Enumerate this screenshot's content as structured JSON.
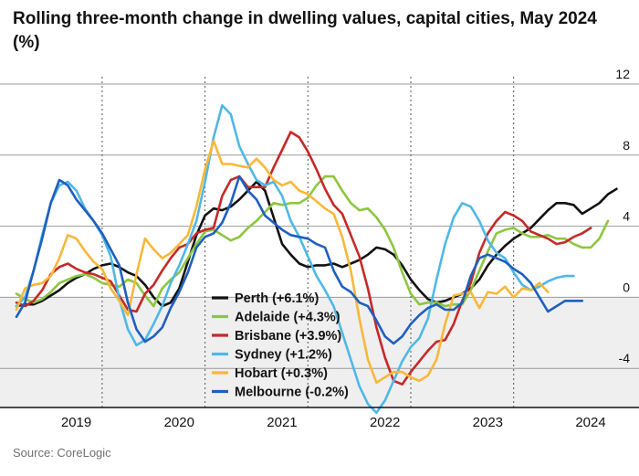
{
  "title": "Rolling three-month change in dwelling values, capital cities, May 2024 (%)",
  "source": "Source: CoreLogic",
  "chart_data": {
    "type": "line",
    "x_start": "2018-09",
    "x_end": "2024-06",
    "ylim": [
      -6.2,
      12
    ],
    "y_ticks": [
      12,
      8,
      4,
      0,
      -4
    ],
    "x_ticks": [
      {
        "label": "2019",
        "date": "2019-01"
      },
      {
        "label": "2020",
        "date": "2020-01"
      },
      {
        "label": "2021",
        "date": "2021-01"
      },
      {
        "label": "2022",
        "date": "2022-01"
      },
      {
        "label": "2023",
        "date": "2023-01"
      },
      {
        "label": "2024",
        "date": "2024-01"
      }
    ],
    "dotted_dividers": [
      "2019-07",
      "2020-07",
      "2021-07",
      "2022-07",
      "2023-07"
    ],
    "grid": true,
    "negative_shade": "#efefef",
    "legend_position": "center-left",
    "series": [
      {
        "name": "Perth (+6.1%)",
        "color": "#121212",
        "start": "2018-09",
        "values": [
          -0.5,
          -0.4,
          -0.4,
          -0.2,
          0.1,
          0.4,
          0.8,
          1.1,
          1.3,
          1.6,
          1.8,
          1.9,
          1.7,
          1.4,
          1.2,
          0.7,
          0.0,
          -0.5,
          -0.3,
          0.5,
          2.0,
          3.5,
          4.6,
          5.0,
          4.9,
          5.1,
          5.5,
          6.0,
          6.5,
          6.0,
          4.5,
          3.0,
          2.4,
          1.9,
          1.7,
          1.8,
          1.8,
          1.9,
          1.7,
          1.9,
          2.1,
          2.4,
          2.8,
          2.7,
          2.4,
          1.8,
          1.0,
          0.4,
          -0.1,
          -0.3,
          -0.2,
          0.0,
          0.2,
          0.5,
          1.0,
          1.8,
          2.4,
          2.9,
          3.3,
          3.6,
          3.9,
          4.4,
          4.9,
          5.3,
          5.3,
          5.2,
          4.7,
          5.0,
          5.3,
          5.8,
          6.1
        ]
      },
      {
        "name": "Adelaide (+4.3%)",
        "color": "#8dc63f",
        "start": "2018-09",
        "values": [
          0.2,
          -0.1,
          -0.3,
          -0.1,
          0.3,
          0.8,
          1.0,
          1.2,
          1.3,
          1.1,
          0.8,
          0.7,
          0.6,
          1.0,
          0.8,
          0.1,
          -0.5,
          0.5,
          1.0,
          1.4,
          2.2,
          3.0,
          3.7,
          3.8,
          3.5,
          3.2,
          3.4,
          3.9,
          4.3,
          4.8,
          5.3,
          5.2,
          5.3,
          5.3,
          5.6,
          6.3,
          6.8,
          6.8,
          6.0,
          5.3,
          4.9,
          5.0,
          4.5,
          3.8,
          2.8,
          1.4,
          0.2,
          -0.4,
          -0.3,
          -0.3,
          -0.5,
          -0.4,
          -0.4,
          0.4,
          1.5,
          2.6,
          3.6,
          3.8,
          3.9,
          3.6,
          3.4,
          3.4,
          3.5,
          3.3,
          3.3,
          3.0,
          2.8,
          2.8,
          3.3,
          4.3
        ]
      },
      {
        "name": "Brisbane (+3.9%)",
        "color": "#c62828",
        "start": "2018-09",
        "values": [
          -0.3,
          -0.5,
          -0.2,
          0.4,
          1.3,
          1.7,
          1.9,
          1.6,
          1.4,
          1.3,
          1.1,
          0.9,
          0.1,
          -0.7,
          -0.8,
          0.2,
          0.7,
          1.5,
          2.2,
          2.8,
          3.0,
          3.6,
          3.8,
          3.9,
          5.7,
          6.6,
          6.8,
          6.2,
          6.2,
          6.2,
          7.3,
          8.3,
          9.3,
          9.0,
          8.2,
          7.2,
          6.1,
          5.2,
          4.7,
          3.5,
          2.3,
          0.5,
          -1.7,
          -3.4,
          -4.7,
          -4.9,
          -4.2,
          -3.6,
          -3.0,
          -2.5,
          -2.4,
          -1.5,
          -0.2,
          0.8,
          2.5,
          3.6,
          4.3,
          4.8,
          4.6,
          4.3,
          3.7,
          3.5,
          3.3,
          3.0,
          3.1,
          3.4,
          3.6,
          3.9
        ]
      },
      {
        "name": "Sydney (+1.2%)",
        "color": "#4fb8e6",
        "start": "2018-09",
        "values": [
          -0.5,
          0.0,
          1.5,
          3.5,
          5.3,
          6.3,
          6.5,
          6.0,
          5.0,
          4.3,
          3.5,
          2.3,
          -0.1,
          -1.8,
          -2.7,
          -2.4,
          -1.5,
          -0.5,
          0.8,
          1.8,
          3.0,
          4.3,
          6.5,
          9.0,
          10.8,
          10.3,
          8.5,
          7.5,
          6.6,
          6.3,
          6.5,
          5.7,
          4.3,
          3.4,
          2.3,
          1.2,
          0.4,
          -0.5,
          -2.0,
          -3.5,
          -5.0,
          -6.0,
          -6.5,
          -5.8,
          -4.7,
          -3.6,
          -2.8,
          -2.3,
          -1.2,
          1.0,
          3.0,
          4.5,
          5.3,
          5.1,
          4.3,
          3.2,
          2.5,
          2.2,
          1.4,
          0.7,
          0.4,
          0.6,
          0.9,
          1.1,
          1.2,
          1.2
        ]
      },
      {
        "name": "Hobart (+0.3%)",
        "color": "#f9b73a",
        "start": "2018-09",
        "values": [
          -0.7,
          0.5,
          0.7,
          0.8,
          1.2,
          2.2,
          3.5,
          3.3,
          2.6,
          2.0,
          1.6,
          0.5,
          -0.2,
          -1.0,
          1.3,
          3.3,
          2.7,
          2.2,
          2.5,
          3.0,
          3.5,
          5.1,
          7.2,
          8.8,
          7.5,
          7.5,
          7.4,
          7.3,
          7.8,
          7.3,
          6.6,
          6.3,
          6.5,
          6.0,
          5.8,
          5.4,
          5.0,
          4.7,
          3.4,
          1.5,
          -1.2,
          -3.5,
          -4.8,
          -4.5,
          -4.2,
          -4.2,
          -4.5,
          -4.7,
          -4.4,
          -3.5,
          -1.5,
          0.1,
          0.2,
          0.3,
          -0.6,
          0.3,
          0.2,
          0.6,
          0.0,
          0.5,
          0.4,
          0.8,
          0.3
        ]
      },
      {
        "name": "Melbourne (-0.2%)",
        "color": "#1f5fbf",
        "start": "2018-09",
        "values": [
          -1.1,
          -0.3,
          1.5,
          3.3,
          5.3,
          6.6,
          6.3,
          5.5,
          4.9,
          4.3,
          3.6,
          2.7,
          1.8,
          -0.3,
          -1.8,
          -2.5,
          -2.2,
          -1.7,
          -0.6,
          0.3,
          1.4,
          2.8,
          3.4,
          3.6,
          4.2,
          5.3,
          6.8,
          6.0,
          5.5,
          4.6,
          4.2,
          3.8,
          3.5,
          3.4,
          3.3,
          3.0,
          2.8,
          1.5,
          0.6,
          0.3,
          -0.3,
          -0.5,
          -1.3,
          -2.2,
          -2.6,
          -2.2,
          -1.5,
          -1.0,
          -0.6,
          -0.4,
          -0.7,
          -0.7,
          -0.3,
          1.2,
          2.2,
          2.4,
          2.2,
          2.0,
          1.6,
          1.3,
          0.8,
          0.0,
          -0.8,
          -0.5,
          -0.2,
          -0.2,
          -0.2
        ]
      }
    ]
  }
}
